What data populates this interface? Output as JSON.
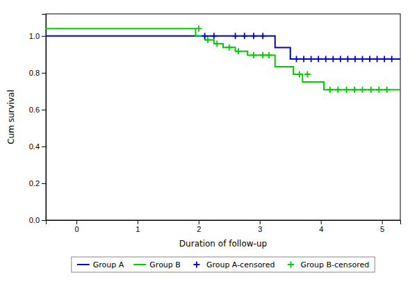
{
  "chart_data": {
    "type": "line",
    "xlabel": "Duration of follow-up",
    "ylabel": "Cum survival",
    "xlim": [
      -0.5,
      5.3
    ],
    "ylim": [
      0.0,
      1.12
    ],
    "xticks": [
      0,
      1,
      2,
      3,
      4,
      5
    ],
    "yticks": [
      {
        "value": 0.0,
        "label": "0.0"
      },
      0.2,
      0.4,
      0.6,
      0.8,
      {
        "value": 1.0,
        "label": "1.0"
      }
    ],
    "legend": "bottom",
    "series": [
      {
        "name": "Group A",
        "type": "line",
        "line_style": "solid",
        "color": "#0000CC",
        "x": [
          -0.5,
          2.0,
          2.0,
          3.25,
          3.25,
          3.5,
          3.5,
          5.3
        ],
        "values": [
          1.0,
          1.0,
          1.0,
          1.0,
          0.9375,
          0.9375,
          0.875,
          0.875
        ]
      },
      {
        "name": "Group B",
        "type": "line",
        "line_style": "solid",
        "color": "#00CC00",
        "x": [
          -0.5,
          1.95,
          1.95,
          2.1,
          2.1,
          2.25,
          2.25,
          2.4,
          2.4,
          2.6,
          2.6,
          2.8,
          2.8,
          3.25,
          3.25,
          3.55,
          3.55,
          3.7,
          3.7,
          4.05,
          4.05,
          5.3
        ],
        "values": [
          1.04,
          1.04,
          1.0,
          1.0,
          0.979,
          0.979,
          0.958,
          0.958,
          0.938,
          0.938,
          0.917,
          0.917,
          0.896,
          0.896,
          0.833,
          0.833,
          0.792,
          0.792,
          0.75,
          0.75,
          0.708,
          0.708
        ]
      },
      {
        "name": "Group A-censored",
        "type": "scatter",
        "marker": "plus",
        "color": "#0000CC",
        "x": [
          2.1,
          2.25,
          2.6,
          2.75,
          2.9,
          3.05,
          3.6,
          3.72,
          3.84,
          3.96,
          4.08,
          4.2,
          4.32,
          4.44,
          4.56,
          4.68,
          4.8,
          4.92,
          5.04,
          5.16
        ],
        "values": [
          1.0,
          1.0,
          1.0,
          1.0,
          1.0,
          1.0,
          0.875,
          0.875,
          0.875,
          0.875,
          0.875,
          0.875,
          0.875,
          0.875,
          0.875,
          0.875,
          0.875,
          0.875,
          0.875,
          0.875
        ]
      },
      {
        "name": "Group B-censored",
        "type": "scatter",
        "marker": "plus",
        "color": "#00CC00",
        "x": [
          2.0,
          2.15,
          2.3,
          2.5,
          2.65,
          2.9,
          3.05,
          3.15,
          3.65,
          3.78,
          4.15,
          4.28,
          4.42,
          4.55,
          4.68,
          4.82,
          4.95,
          5.08
        ],
        "values": [
          1.04,
          0.979,
          0.958,
          0.938,
          0.917,
          0.896,
          0.896,
          0.896,
          0.792,
          0.792,
          0.708,
          0.708,
          0.708,
          0.708,
          0.708,
          0.708,
          0.708,
          0.708
        ]
      }
    ]
  }
}
